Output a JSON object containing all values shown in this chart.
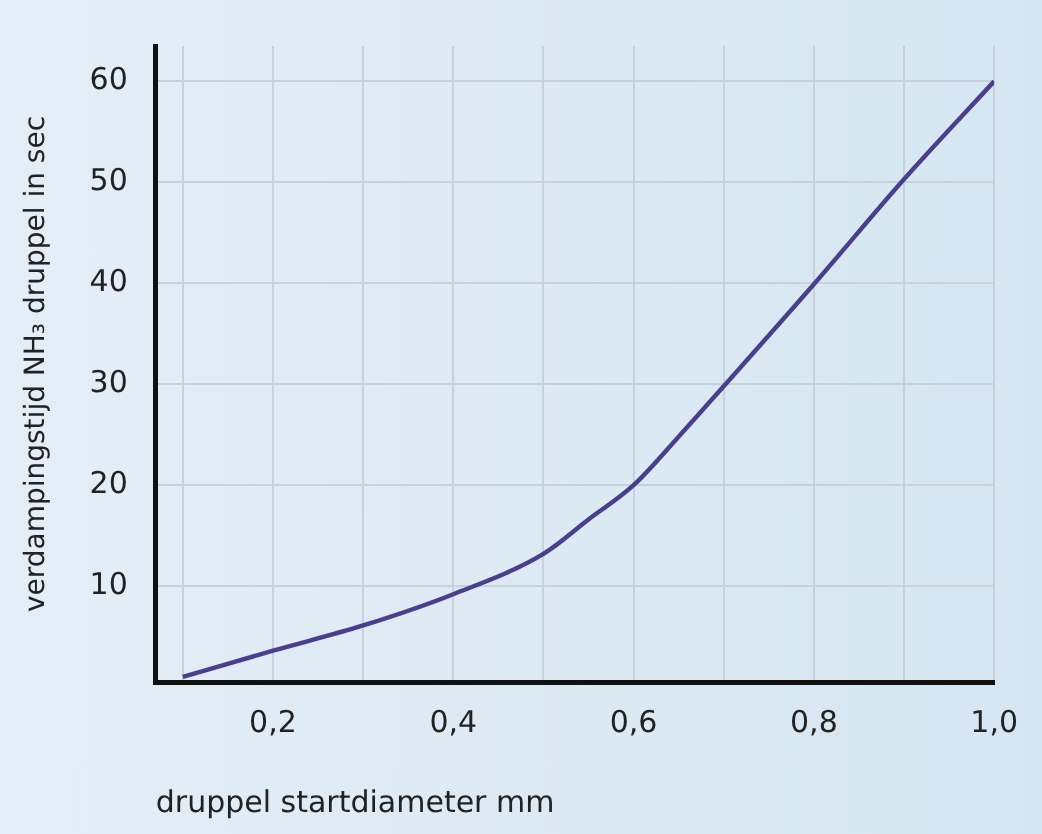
{
  "chart_data": {
    "type": "line",
    "xlabel": "druppel startdiameter mm",
    "ylabel": "verdampingstijd NH₃ druppel in sec",
    "x": [
      0.1,
      0.2,
      0.3,
      0.4,
      0.5,
      0.55,
      0.6,
      0.65,
      0.7,
      0.8,
      0.9,
      1.0
    ],
    "series": [
      {
        "color": "#4a3f8c",
        "values": [
          1.0,
          3.6,
          6.1,
          9.2,
          13.2,
          16.6,
          20,
          24.8,
          29.8,
          39.9,
          50.3,
          60
        ]
      }
    ],
    "xlim": [
      0.07,
      1.0
    ],
    "ylim": [
      0.5,
      63.5
    ],
    "xticks": [
      {
        "value": 0.1,
        "label": null
      },
      {
        "value": 0.2,
        "label": "0,2"
      },
      {
        "value": 0.3,
        "label": null
      },
      {
        "value": 0.4,
        "label": "0,4"
      },
      {
        "value": 0.5,
        "label": null
      },
      {
        "value": 0.6,
        "label": "0,6"
      },
      {
        "value": 0.7,
        "label": null
      },
      {
        "value": 0.8,
        "label": "0,8"
      },
      {
        "value": 0.9,
        "label": null
      },
      {
        "value": 1.0,
        "label": "1,0"
      }
    ],
    "yticks": [
      10,
      20,
      30,
      40,
      50,
      60
    ],
    "grid": true,
    "legend": false,
    "marker": "none",
    "line_style": "solid"
  }
}
